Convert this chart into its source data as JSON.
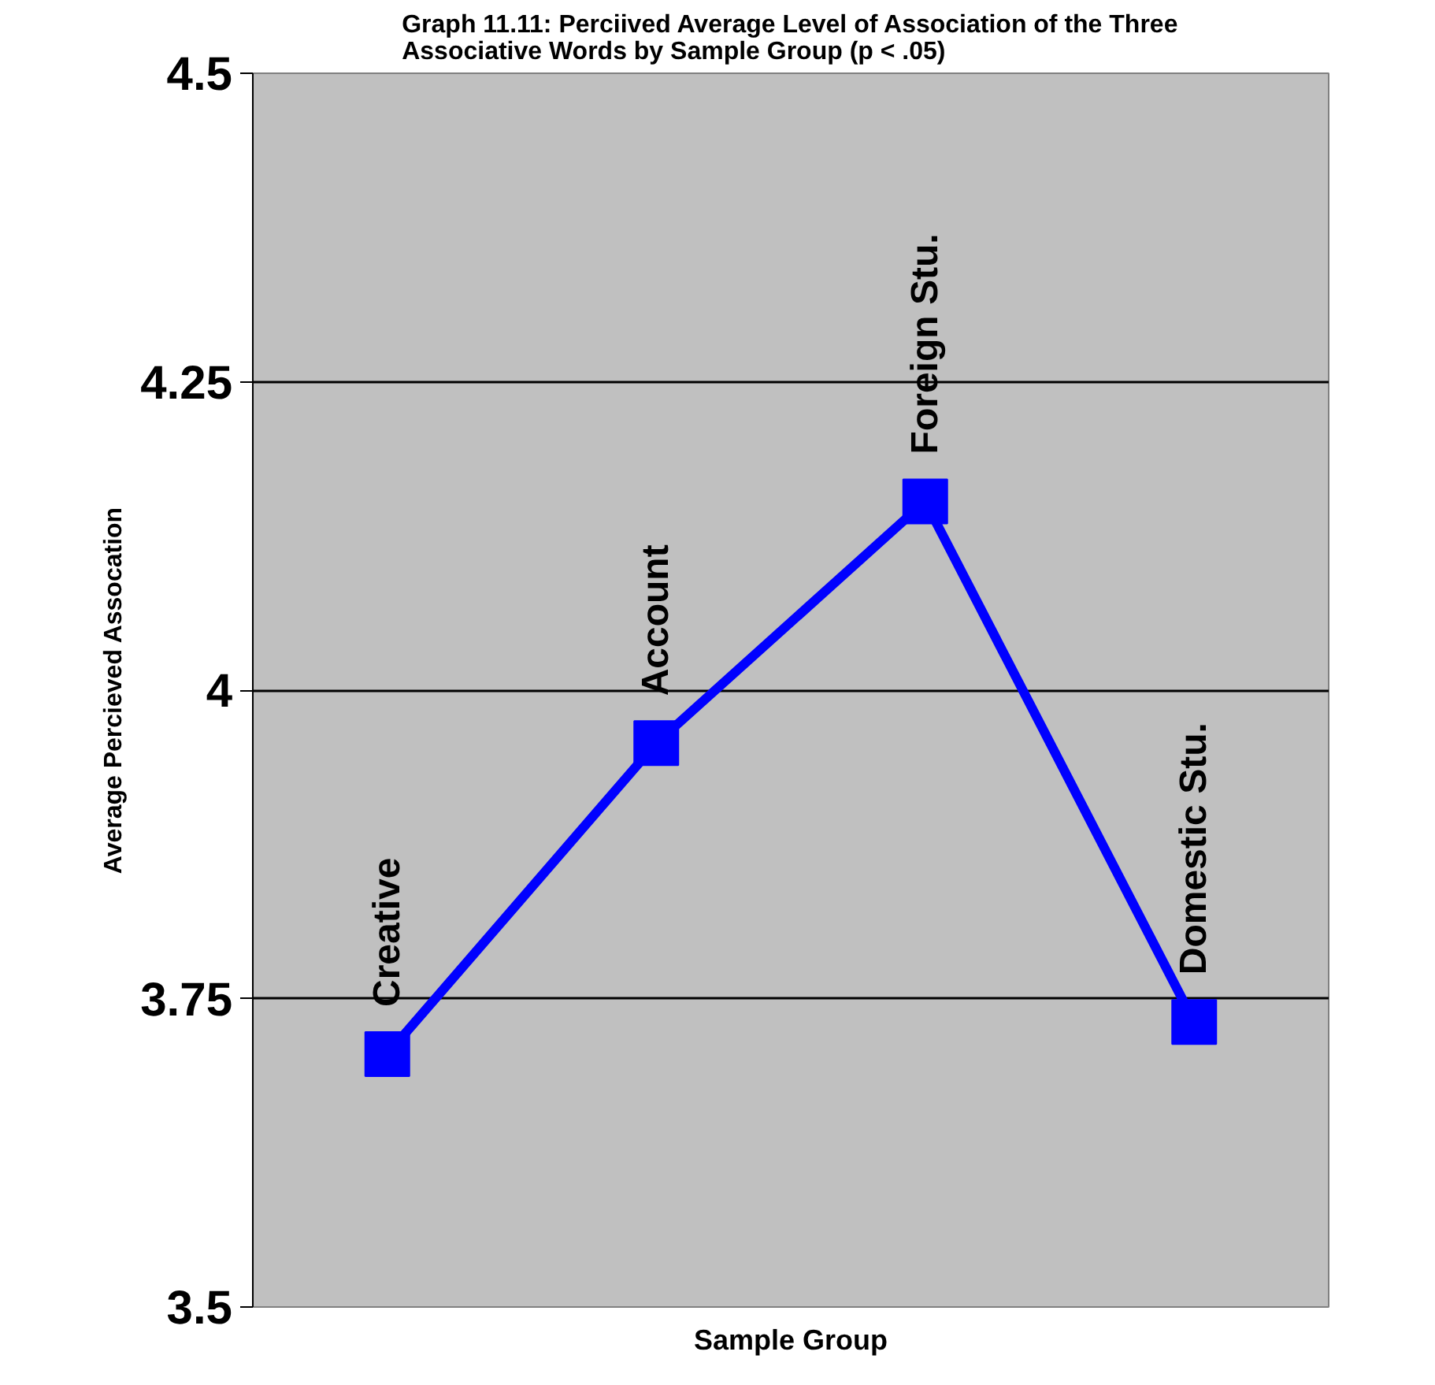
{
  "chart_data": {
    "type": "line",
    "title": "Graph 11.11: Perciived Average Level of Association of the Three\nAssociative Words by Sample Group (p < .05)",
    "xlabel": "Sample Group",
    "ylabel": "Average Percieved Assocation",
    "categories": [
      "Creative",
      "Account",
      "Foreign Stu.",
      "Domestic Stu."
    ],
    "series": [
      {
        "color": "#0000ff",
        "values": [
          3.705,
          3.957,
          4.153,
          3.731
        ]
      }
    ],
    "ylim": [
      3.5,
      4.5
    ],
    "yticks": [
      3.5,
      3.75,
      4,
      4.25,
      4.5
    ],
    "grid": "y",
    "marker": "square",
    "line_style": "solid",
    "tick_labels": "y"
  }
}
